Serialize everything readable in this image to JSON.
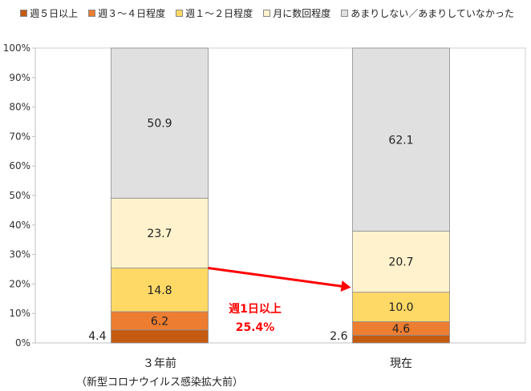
{
  "chart_data": {
    "type": "bar",
    "stacked": true,
    "categories": [
      "３年前",
      "現在"
    ],
    "category_sublabels": [
      "（新型コロナウイルス感染拡大前）",
      ""
    ],
    "series": [
      {
        "name": "週５日以上",
        "values": [
          4.4,
          2.6
        ],
        "color": "#c55a11"
      },
      {
        "name": "週３～４日程度",
        "values": [
          6.2,
          4.6
        ],
        "color": "#ed7d31"
      },
      {
        "name": "週１～２日程度",
        "values": [
          14.8,
          10.0
        ],
        "color": "#ffd966"
      },
      {
        "name": "月に数回程度",
        "values": [
          23.7,
          20.7
        ],
        "color": "#fff2cc"
      },
      {
        "name": "あまりしない／あまりしていなかった",
        "values": [
          50.9,
          62.1
        ],
        "color": "#e0e0e0"
      }
    ],
    "yticks": [
      "0%",
      "10%",
      "20%",
      "30%",
      "40%",
      "50%",
      "60%",
      "70%",
      "80%",
      "90%",
      "100%"
    ],
    "ylim": [
      0,
      100
    ],
    "grid": false,
    "legend_position": "top",
    "annotation": {
      "line1": "週1日以上",
      "line2": "25.4%",
      "color": "#ff0000"
    },
    "arrow_color": "#ff0000"
  }
}
